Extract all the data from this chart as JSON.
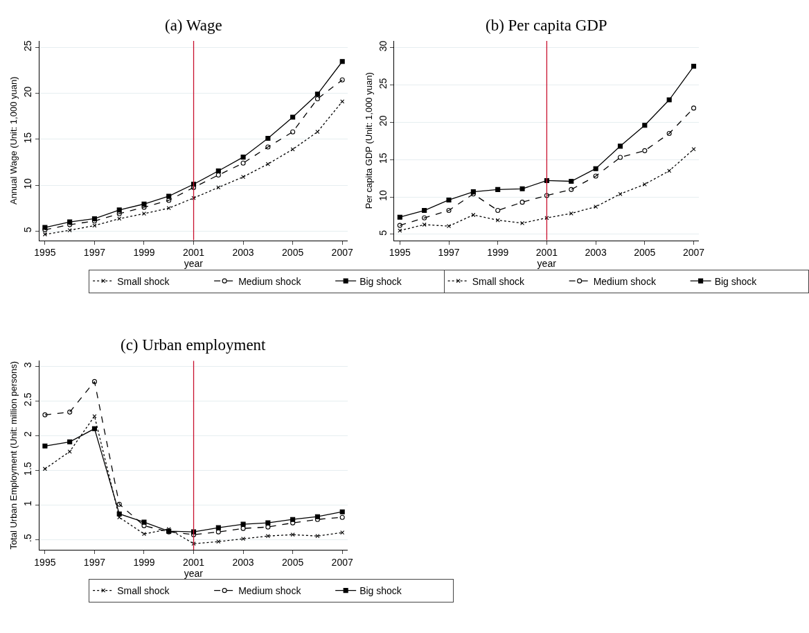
{
  "chart_data": [
    {
      "type": "line",
      "title": "(a) Wage",
      "xlabel": "year",
      "ylabel": "Annual Wage (Unit: 1,000 yuan)",
      "x": [
        1995,
        1996,
        1997,
        1998,
        1999,
        2000,
        2001,
        2002,
        2003,
        2004,
        2005,
        2006,
        2007
      ],
      "xlim": [
        1994.77,
        2007.22
      ],
      "xticks": [
        1995,
        1997,
        1999,
        2001,
        2003,
        2005,
        2007
      ],
      "ylim": [
        4.0,
        25.7
      ],
      "yticks": [
        5,
        10,
        15,
        20,
        25
      ],
      "grid": "y",
      "legend": "bottom",
      "ref_lines": [
        {
          "axis": "x",
          "value": 2001,
          "color": "#c8102e"
        }
      ],
      "series": [
        {
          "name": "Small shock",
          "color": "#000000",
          "marker": "cross",
          "line_style": "dotted",
          "values": [
            4.65,
            5.1,
            5.6,
            6.35,
            6.9,
            7.5,
            8.6,
            9.75,
            10.9,
            12.3,
            13.9,
            15.8,
            19.1
          ]
        },
        {
          "name": "Medium shock",
          "color": "#000000",
          "marker": "circle",
          "line_style": "dashed",
          "values": [
            5.15,
            5.7,
            6.1,
            6.9,
            7.6,
            8.35,
            9.75,
            11.1,
            12.4,
            14.15,
            15.8,
            19.4,
            21.45
          ]
        },
        {
          "name": "Big shock",
          "color": "#000000",
          "marker": "square",
          "line_style": "solid",
          "values": [
            5.4,
            6.0,
            6.35,
            7.3,
            7.95,
            8.8,
            10.1,
            11.55,
            13.05,
            15.1,
            17.4,
            19.9,
            23.45
          ]
        }
      ]
    },
    {
      "type": "line",
      "title": "(b) Per capita GDP",
      "xlabel": "year",
      "ylabel": "Per capita GDP (Unit: 1,000 yuan)",
      "x": [
        1995,
        1996,
        1997,
        1998,
        1999,
        2000,
        2001,
        2002,
        2003,
        2004,
        2005,
        2006,
        2007
      ],
      "xlim": [
        1994.77,
        2007.22
      ],
      "xticks": [
        1995,
        1997,
        1999,
        2001,
        2003,
        2005,
        2007
      ],
      "ylim": [
        4.2,
        30.9
      ],
      "yticks": [
        5,
        10,
        15,
        20,
        25,
        30
      ],
      "grid": "y",
      "legend": "bottom",
      "ref_lines": [
        {
          "axis": "x",
          "value": 2001,
          "color": "#c8102e"
        }
      ],
      "series": [
        {
          "name": "Small shock",
          "color": "#000000",
          "marker": "cross",
          "line_style": "dotted",
          "values": [
            5.5,
            6.3,
            6.1,
            7.6,
            6.9,
            6.5,
            7.2,
            7.8,
            8.7,
            10.4,
            11.7,
            13.5,
            16.4
          ]
        },
        {
          "name": "Medium shock",
          "color": "#000000",
          "marker": "circle",
          "line_style": "dashed",
          "values": [
            6.2,
            7.2,
            8.2,
            10.4,
            8.2,
            9.3,
            10.2,
            11.0,
            12.8,
            15.3,
            16.2,
            18.5,
            21.9
          ]
        },
        {
          "name": "Big shock",
          "color": "#000000",
          "marker": "square",
          "line_style": "solid",
          "values": [
            7.3,
            8.2,
            9.6,
            10.7,
            11.0,
            11.1,
            12.2,
            12.1,
            13.8,
            16.8,
            19.6,
            23.0,
            27.5
          ]
        }
      ]
    },
    {
      "type": "line",
      "title": "(c) Urban employment",
      "xlabel": "year",
      "ylabel": "Total Urban Employment (Unit: million persons)",
      "x": [
        1995,
        1996,
        1997,
        1998,
        1999,
        2000,
        2001,
        2002,
        2003,
        2004,
        2005,
        2006,
        2007
      ],
      "xlim": [
        1994.77,
        2007.22
      ],
      "xticks": [
        1995,
        1997,
        1999,
        2001,
        2003,
        2005,
        2007
      ],
      "ylim": [
        0.35,
        3.08
      ],
      "yticks": [
        {
          "value": 0.5,
          "label": ".5"
        },
        1,
        1.5,
        2,
        2.5,
        3
      ],
      "grid": "y",
      "legend": "bottom",
      "ref_lines": [
        {
          "axis": "x",
          "value": 2001,
          "color": "#c8102e"
        }
      ],
      "series": [
        {
          "name": "Small shock",
          "color": "#000000",
          "marker": "cross",
          "line_style": "dotted",
          "values": [
            1.52,
            1.77,
            2.28,
            0.82,
            0.58,
            0.65,
            0.44,
            0.47,
            0.51,
            0.55,
            0.57,
            0.55,
            0.6
          ]
        },
        {
          "name": "Medium shock",
          "color": "#000000",
          "marker": "circle",
          "line_style": "dashed",
          "values": [
            2.3,
            2.34,
            2.78,
            1.01,
            0.7,
            0.61,
            0.57,
            0.61,
            0.66,
            0.68,
            0.74,
            0.79,
            0.82
          ]
        },
        {
          "name": "Big shock",
          "color": "#000000",
          "marker": "square",
          "line_style": "solid",
          "values": [
            1.85,
            1.91,
            2.1,
            0.87,
            0.75,
            0.62,
            0.61,
            0.67,
            0.72,
            0.74,
            0.79,
            0.83,
            0.9
          ]
        }
      ]
    }
  ]
}
